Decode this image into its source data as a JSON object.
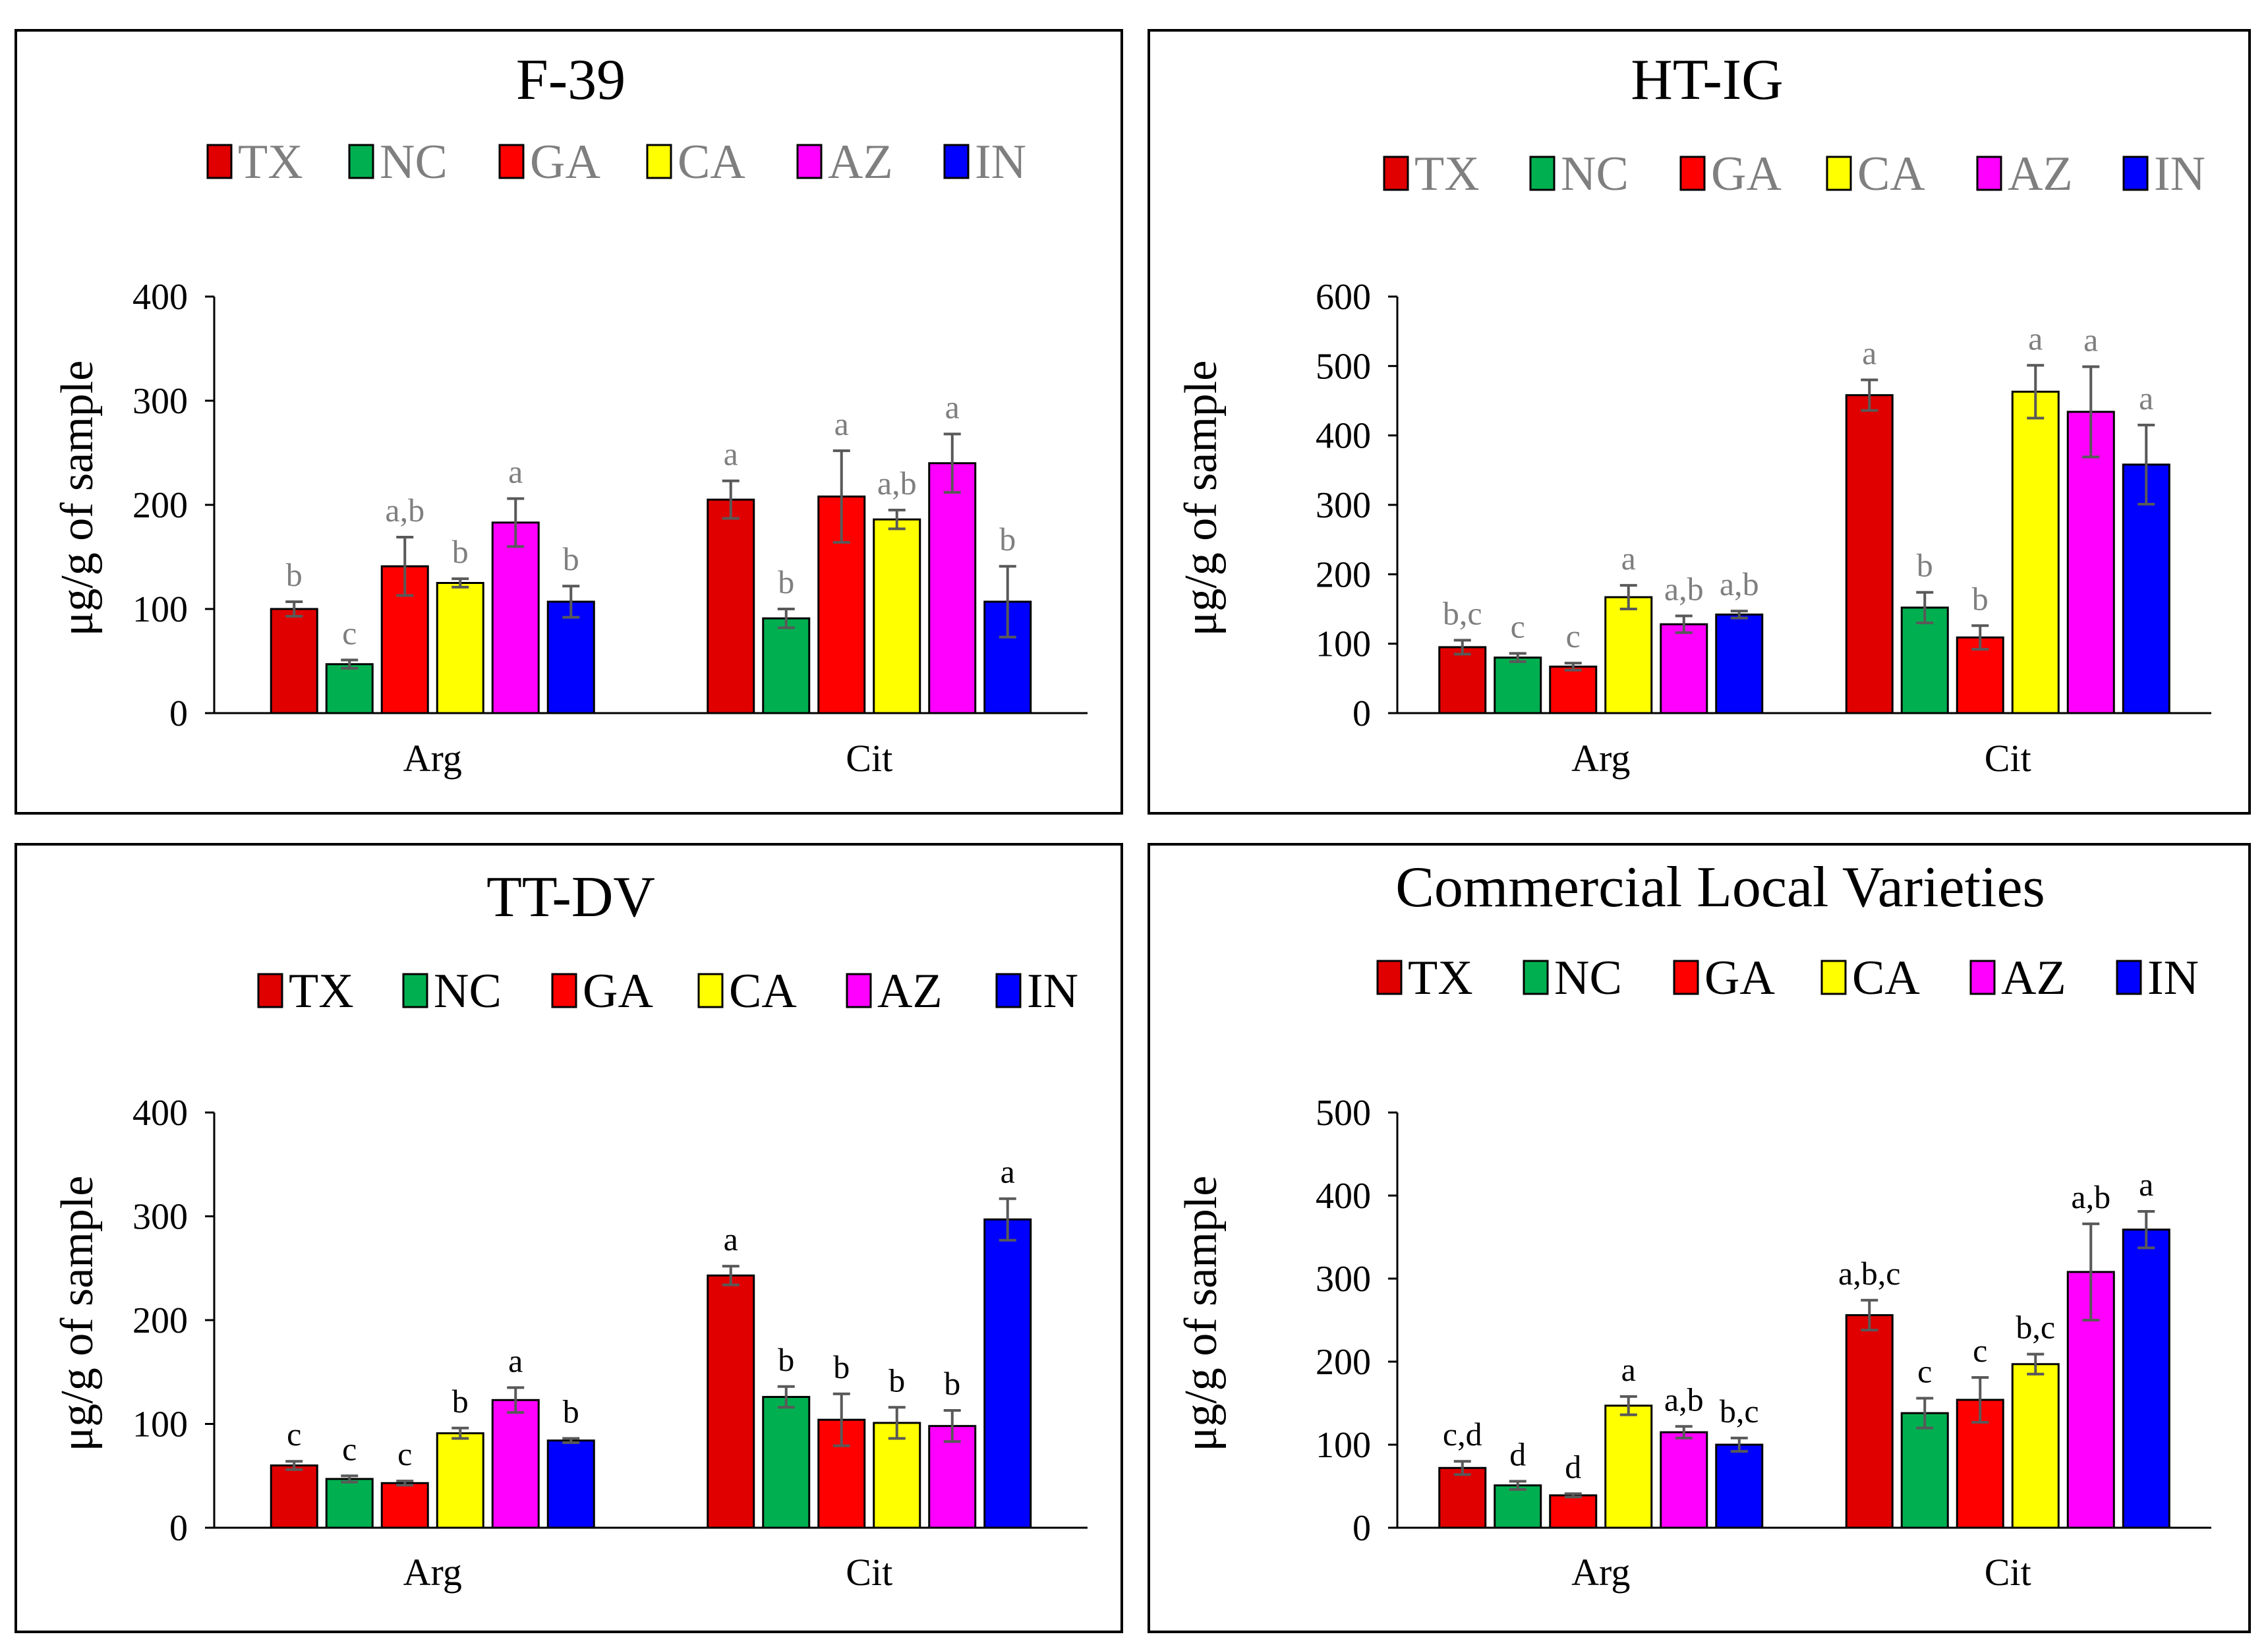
{
  "chart_data": [
    {
      "type": "bar",
      "title": "F-39",
      "ylabel": "μg/g  of sample",
      "xlabel": "",
      "ylim": [
        0,
        400
      ],
      "yticks": [
        0,
        100,
        200,
        300,
        400
      ],
      "categories": [
        "Arg",
        "Cit"
      ],
      "legend_color": "gray",
      "series": [
        {
          "name": "TX",
          "color": "#E00000",
          "values": [
            100,
            205
          ],
          "errors": [
            7,
            18
          ],
          "sig": [
            "b",
            "a"
          ]
        },
        {
          "name": "NC",
          "color": "#00B050",
          "values": [
            47,
            91
          ],
          "errors": [
            4,
            9
          ],
          "sig": [
            "c",
            "b"
          ]
        },
        {
          "name": "GA",
          "color": "#FF0000",
          "values": [
            141,
            208
          ],
          "errors": [
            28,
            44
          ],
          "sig": [
            "a,b",
            "a"
          ]
        },
        {
          "name": "CA",
          "color": "#FFFF00",
          "values": [
            125,
            186
          ],
          "errors": [
            4,
            9
          ],
          "sig": [
            "b",
            "a,b"
          ]
        },
        {
          "name": "AZ",
          "color": "#FF00FF",
          "values": [
            183,
            240
          ],
          "errors": [
            23,
            28
          ],
          "sig": [
            "a",
            "a"
          ]
        },
        {
          "name": "IN",
          "color": "#0000FF",
          "values": [
            107,
            107
          ],
          "errors": [
            15,
            34
          ],
          "sig": [
            "b",
            "b"
          ]
        }
      ]
    },
    {
      "type": "bar",
      "title": "HT-IG",
      "ylabel": "μg/g  of sample",
      "xlabel": "",
      "ylim": [
        0,
        600
      ],
      "yticks": [
        0,
        100,
        200,
        300,
        400,
        500,
        600
      ],
      "categories": [
        "Arg",
        "Cit"
      ],
      "legend_color": "gray",
      "series": [
        {
          "name": "TX",
          "color": "#E00000",
          "values": [
            95,
            458
          ],
          "errors": [
            10,
            22
          ],
          "sig": [
            "b,c",
            "a"
          ]
        },
        {
          "name": "NC",
          "color": "#00B050",
          "values": [
            80,
            152
          ],
          "errors": [
            6,
            22
          ],
          "sig": [
            "c",
            "b"
          ]
        },
        {
          "name": "GA",
          "color": "#FF0000",
          "values": [
            67,
            109
          ],
          "errors": [
            5,
            17
          ],
          "sig": [
            "c",
            "b"
          ]
        },
        {
          "name": "CA",
          "color": "#FFFF00",
          "values": [
            167,
            463
          ],
          "errors": [
            17,
            38
          ],
          "sig": [
            "a",
            "a"
          ]
        },
        {
          "name": "AZ",
          "color": "#FF00FF",
          "values": [
            128,
            434
          ],
          "errors": [
            12,
            65
          ],
          "sig": [
            "a,b",
            "a"
          ]
        },
        {
          "name": "IN",
          "color": "#0000FF",
          "values": [
            142,
            358
          ],
          "errors": [
            5,
            57
          ],
          "sig": [
            "a,b",
            "a"
          ]
        }
      ]
    },
    {
      "type": "bar",
      "title": "TT-DV",
      "ylabel": "μg/g  of sample",
      "xlabel": "",
      "ylim": [
        0,
        400
      ],
      "yticks": [
        0,
        100,
        200,
        300,
        400
      ],
      "categories": [
        "Arg",
        "Cit"
      ],
      "legend_color": "black",
      "series": [
        {
          "name": "TX",
          "color": "#E00000",
          "values": [
            60,
            243
          ],
          "errors": [
            4,
            9
          ],
          "sig": [
            "c",
            "a"
          ]
        },
        {
          "name": "NC",
          "color": "#00B050",
          "values": [
            47,
            126
          ],
          "errors": [
            3,
            10
          ],
          "sig": [
            "c",
            "b"
          ]
        },
        {
          "name": "GA",
          "color": "#FF0000",
          "values": [
            43,
            104
          ],
          "errors": [
            2,
            25
          ],
          "sig": [
            "c",
            "b"
          ]
        },
        {
          "name": "CA",
          "color": "#FFFF00",
          "values": [
            91,
            101
          ],
          "errors": [
            5,
            15
          ],
          "sig": [
            "b",
            "b"
          ]
        },
        {
          "name": "AZ",
          "color": "#FF00FF",
          "values": [
            123,
            98
          ],
          "errors": [
            12,
            15
          ],
          "sig": [
            "a",
            "b"
          ]
        },
        {
          "name": "IN",
          "color": "#0000FF",
          "values": [
            84,
            297
          ],
          "errors": [
            2,
            20
          ],
          "sig": [
            "b",
            "a"
          ]
        }
      ]
    },
    {
      "type": "bar",
      "title": "Commercial Local Varieties",
      "ylabel": "μg/g  of sample",
      "xlabel": "",
      "ylim": [
        0,
        500
      ],
      "yticks": [
        0,
        100,
        200,
        300,
        400,
        500
      ],
      "categories": [
        "Arg",
        "Cit"
      ],
      "legend_color": "black",
      "series": [
        {
          "name": "TX",
          "color": "#E00000",
          "values": [
            72,
            256
          ],
          "errors": [
            8,
            18
          ],
          "sig": [
            "c,d",
            "a,b,c"
          ]
        },
        {
          "name": "NC",
          "color": "#00B050",
          "values": [
            51,
            138
          ],
          "errors": [
            5,
            18
          ],
          "sig": [
            "d",
            "c"
          ]
        },
        {
          "name": "GA",
          "color": "#FF0000",
          "values": [
            39,
            154
          ],
          "errors": [
            2,
            27
          ],
          "sig": [
            "d",
            "c"
          ]
        },
        {
          "name": "CA",
          "color": "#FFFF00",
          "values": [
            147,
            197
          ],
          "errors": [
            11,
            12
          ],
          "sig": [
            "a",
            "b,c"
          ]
        },
        {
          "name": "AZ",
          "color": "#FF00FF",
          "values": [
            115,
            308
          ],
          "errors": [
            7,
            58
          ],
          "sig": [
            "a,b",
            "a,b"
          ]
        },
        {
          "name": "IN",
          "color": "#0000FF",
          "values": [
            100,
            359
          ],
          "errors": [
            8,
            22
          ],
          "sig": [
            "b,c",
            "a"
          ]
        }
      ]
    }
  ]
}
